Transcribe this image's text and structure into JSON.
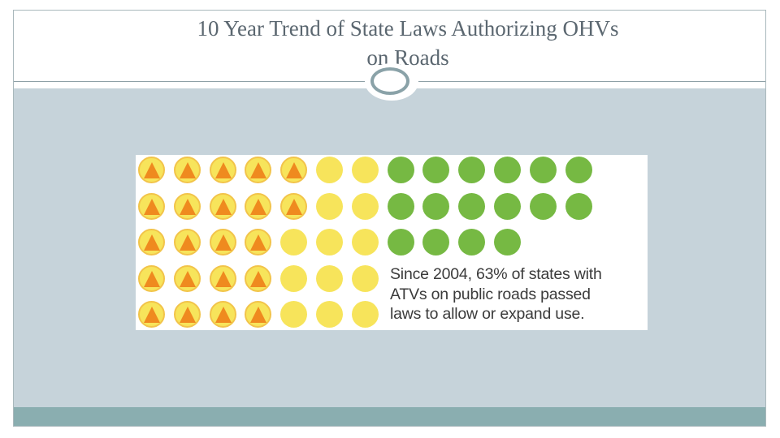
{
  "slide": {
    "title_line1": "10 Year Trend of State Laws Authorizing OHVs",
    "title_line2": "on Roads"
  },
  "infographic": {
    "caption_lines": [
      "Since 2004, 63% of states with",
      "ATVs on public roads passed",
      "laws to allow or expand use."
    ],
    "rows": [
      [
        "atv",
        "atv",
        "atv",
        "atv",
        "atv",
        "yellow",
        "yellow",
        "green",
        "green",
        "green",
        "green",
        "green",
        "green"
      ],
      [
        "atv",
        "atv",
        "atv",
        "atv",
        "atv",
        "yellow",
        "yellow",
        "green",
        "green",
        "green",
        "green",
        "green",
        "green"
      ],
      [
        "atv",
        "atv",
        "atv",
        "atv",
        "yellow",
        "yellow",
        "yellow",
        "green",
        "green",
        "green",
        "green"
      ],
      [
        "atv",
        "atv",
        "atv",
        "atv",
        "yellow",
        "yellow",
        "yellow"
      ],
      [
        "atv",
        "atv",
        "atv",
        "atv",
        "yellow",
        "yellow",
        "yellow"
      ]
    ],
    "legend_icons": {
      "atv": "atv-triangle-icon",
      "yellow": "state-dot-icon",
      "green": "law-passed-dot-icon"
    },
    "colors": {
      "yellow_dot": "#f7e45b",
      "green_dot": "#76b943",
      "atv_triangle": "#ef8a1f",
      "content_background": "#c6d3da",
      "footer_bar": "#8aaeb0"
    }
  }
}
